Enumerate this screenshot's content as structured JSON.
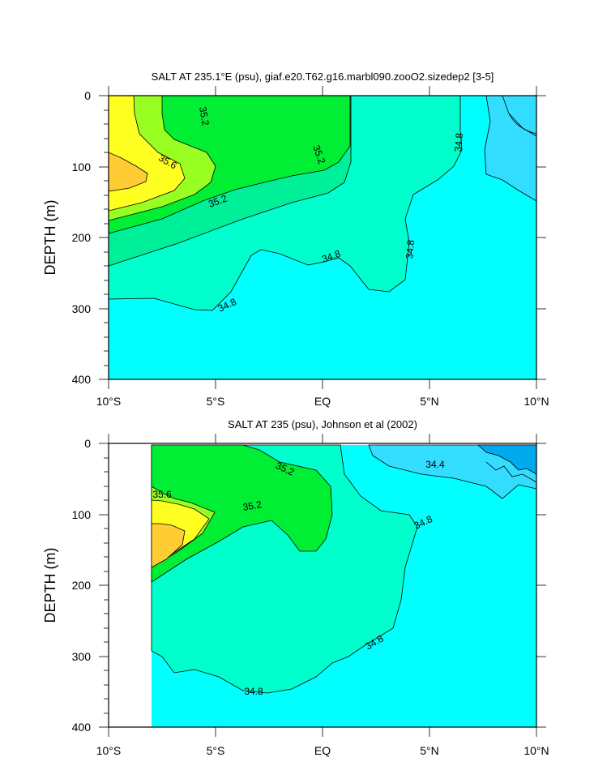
{
  "chart_data": [
    {
      "type": "contour",
      "title": "SALT AT 235.1°E (psu), giaf.e20.T62.g16.marbl090.zooO2.sizedep2 [3-5]",
      "ylabel": "DEPTH (m)",
      "xticks": [
        "10°S",
        "5°S",
        "EQ",
        "5°N",
        "10°N"
      ],
      "yticks": [
        "0",
        "100",
        "200",
        "300",
        "400"
      ],
      "xlim": [
        -10,
        10
      ],
      "ylim": [
        0,
        400
      ],
      "contour_labels": [
        "35.2",
        "35.6",
        "35.2",
        "35.2",
        "34.8",
        "34.8",
        "34.8",
        "34.8"
      ]
    },
    {
      "type": "contour",
      "title": "SALT AT 235 (psu), Johnson et al (2002)",
      "ylabel": "DEPTH (m)",
      "xticks": [
        "10°S",
        "5°S",
        "EQ",
        "5°N",
        "10°N"
      ],
      "yticks": [
        "0",
        "100",
        "200",
        "300",
        "400"
      ],
      "xlim": [
        -10,
        10
      ],
      "ylim": [
        0,
        400
      ],
      "contour_labels": [
        "35.2",
        "35.6",
        "35.2",
        "34.4",
        "34.8",
        "34.8",
        "34.8"
      ]
    }
  ],
  "colors": {
    "cyan": "#00ffff",
    "aqua": "#00ffcc",
    "green_light": "#00f09a",
    "green": "#00ee33",
    "lime": "#99ff22",
    "yellow": "#ffff22",
    "orange": "#ffcc33",
    "light_blue": "#33ddff",
    "blue": "#00aaee"
  }
}
